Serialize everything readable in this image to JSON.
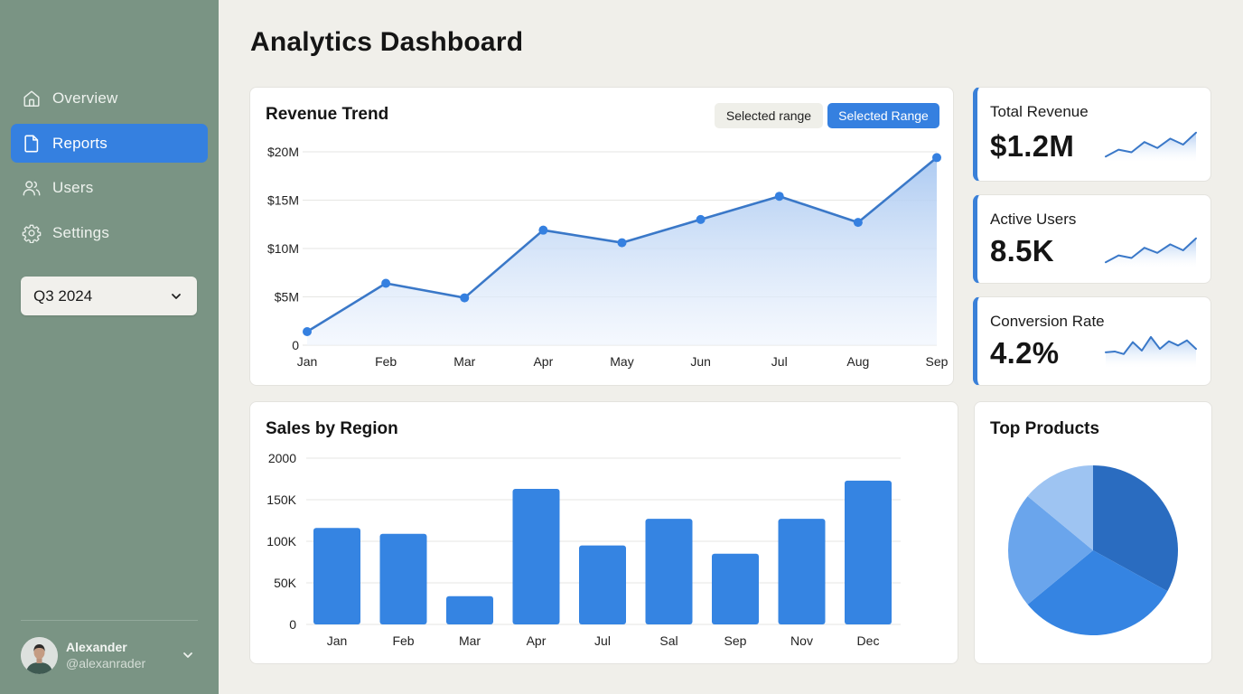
{
  "sidebar": {
    "items": [
      {
        "label": "Overview",
        "icon": "home-icon",
        "active": false
      },
      {
        "label": "Reports",
        "icon": "document-icon",
        "active": true
      },
      {
        "label": "Users",
        "icon": "users-icon",
        "active": false
      },
      {
        "label": "Settings",
        "icon": "gear-icon",
        "active": false
      }
    ],
    "period": {
      "value": "Q3 2024",
      "icon": "chevron-down-icon"
    },
    "user": {
      "name": "Alexander",
      "handle": "@alexanrader"
    }
  },
  "header": {
    "title": "Analytics Dashboard"
  },
  "revenue": {
    "title": "Revenue Trend",
    "range_buttons": [
      {
        "label": "Selected range",
        "active": false
      },
      {
        "label": "Selected Range",
        "active": true
      }
    ]
  },
  "stats": [
    {
      "label": "Total Revenue",
      "value": "$1.2M"
    },
    {
      "label": "Active Users",
      "value": "8.5K"
    },
    {
      "label": "Conversion Rate",
      "value": "4.2%"
    }
  ],
  "sales": {
    "title": "Sales by Region"
  },
  "products": {
    "title": "Top Products"
  },
  "colors": {
    "accent": "#3580e0",
    "sidebar_bg": "#7a9484",
    "page_bg": "#f0efea",
    "line": "#3a78c8",
    "pie": [
      "#2a6cc0",
      "#3584e2",
      "#6aa5ec",
      "#9ec4f2"
    ]
  },
  "chart_data": [
    {
      "type": "line",
      "title": "Revenue Trend",
      "categories": [
        "Jan",
        "Feb",
        "Mar",
        "Apr",
        "May",
        "Jun",
        "Jul",
        "Aug",
        "Sep"
      ],
      "values": [
        1.4,
        6.4,
        4.9,
        11.9,
        10.6,
        13.0,
        15.4,
        12.7,
        19.4
      ],
      "unit": "$M",
      "yticks": [
        "0",
        "$5M",
        "$10M",
        "$15M",
        "$20M"
      ],
      "ylim": [
        0,
        20
      ],
      "xlabel": "",
      "ylabel": "",
      "grid": true,
      "area_fill": true
    },
    {
      "type": "bar",
      "title": "Sales by Region",
      "categories": [
        "Jan",
        "Feb",
        "Mar",
        "Apr",
        "Jul",
        "Sal",
        "Sep",
        "Nov",
        "Dec"
      ],
      "values": [
        116,
        109,
        34,
        163,
        95,
        127,
        85,
        127,
        173
      ],
      "unit": "K",
      "yticks": [
        "0",
        "50K",
        "100K",
        "150K",
        "2000"
      ],
      "ylim": [
        0,
        200
      ],
      "xlabel": "",
      "ylabel": "",
      "grid": true
    },
    {
      "type": "pie",
      "title": "Top Products",
      "values": [
        33,
        31,
        22,
        14
      ],
      "labels": [],
      "legend": "none"
    },
    {
      "type": "line",
      "title": "Total Revenue sparkline",
      "values": [
        2,
        6,
        4.5,
        10.5,
        7,
        12.5,
        9,
        16
      ]
    },
    {
      "type": "line",
      "title": "Active Users sparkline",
      "values": [
        2,
        6,
        4.5,
        10.5,
        7.5,
        12.5,
        9,
        16
      ]
    },
    {
      "type": "line",
      "title": "Conversion Rate sparkline",
      "values": [
        8,
        8.5,
        7,
        14,
        9,
        17,
        10,
        14.5,
        12,
        15,
        10
      ]
    }
  ]
}
